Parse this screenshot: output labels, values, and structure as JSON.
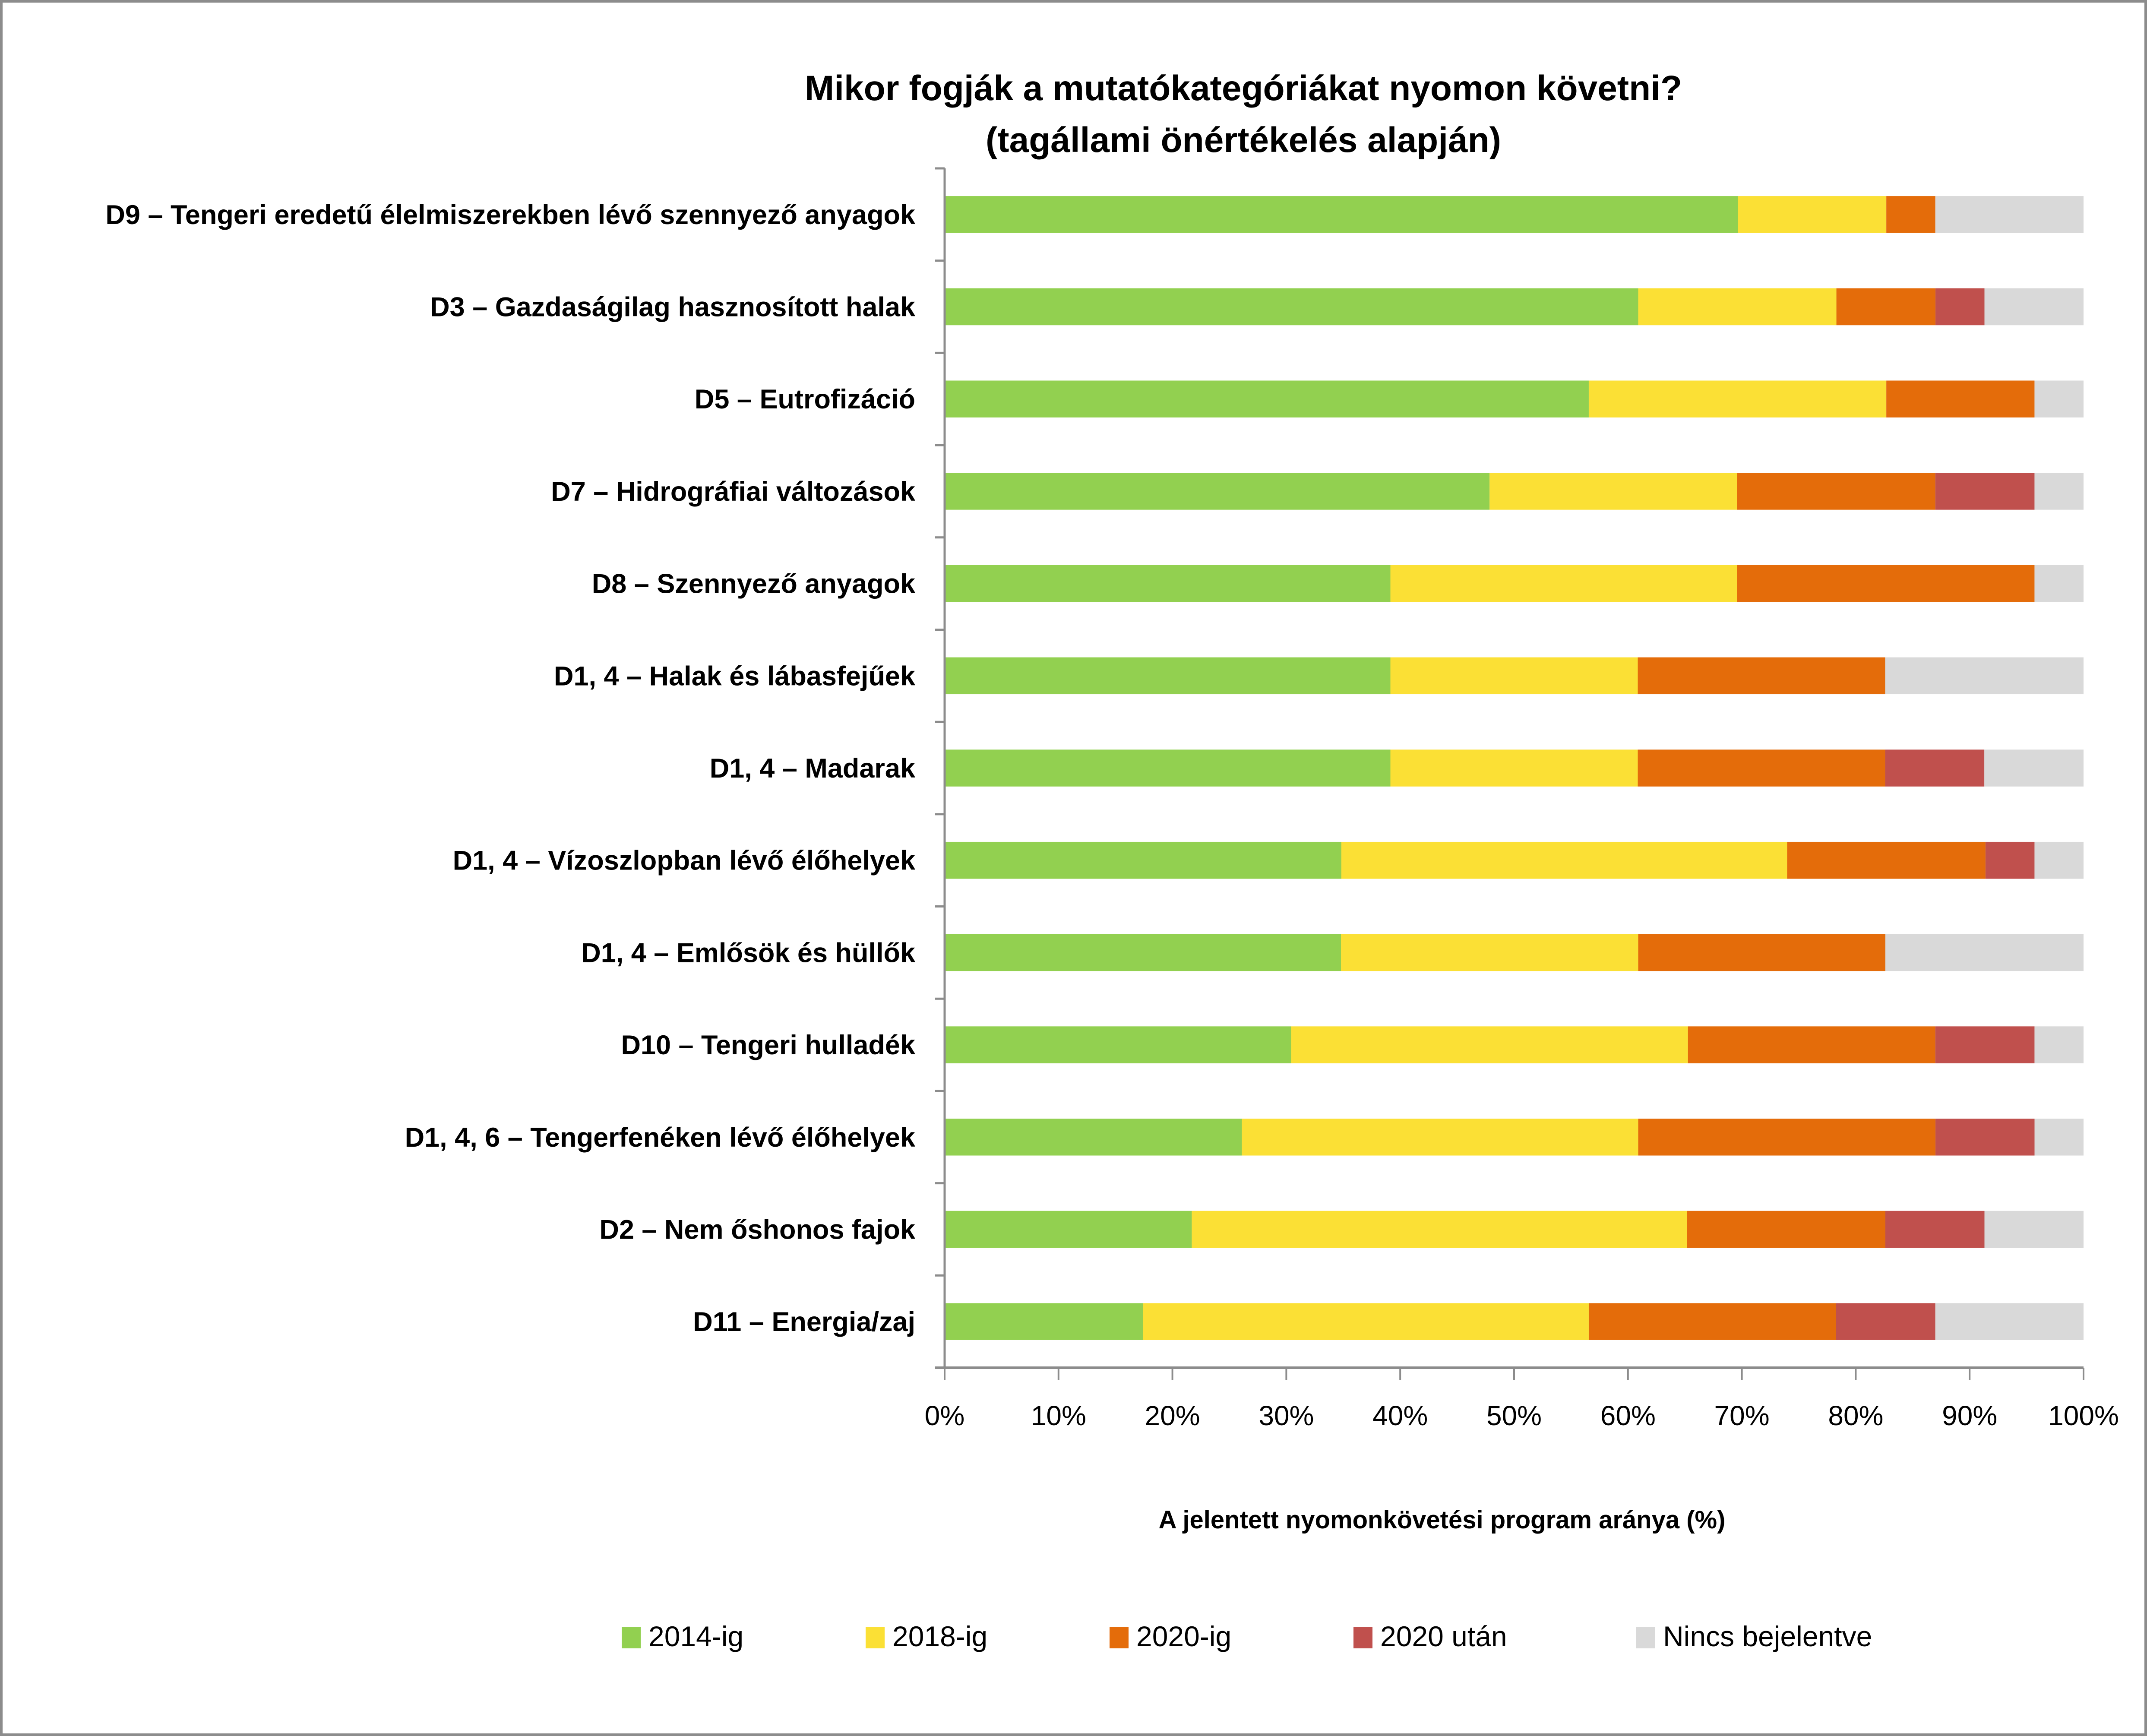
{
  "chart_data": {
    "type": "bar",
    "orientation": "horizontal",
    "stacked": "percent",
    "title": "Mikor fogják a mutatókategóriákat nyomon követni?",
    "subtitle": "(tagállami önértékelés alapján)",
    "xlabel": "A jelentett nyomonkövetési program aránya (%)",
    "ylabel": "",
    "xlim": [
      0,
      100
    ],
    "x_ticks": [
      "0%",
      "10%",
      "20%",
      "30%",
      "40%",
      "50%",
      "60%",
      "70%",
      "80%",
      "90%",
      "100%"
    ],
    "grid": false,
    "legend_position": "bottom",
    "categories": [
      "D9 – Tengeri eredetű élelmiszerekben lévő szennyező anyagok",
      "D3 – Gazdaságilag hasznosított halak",
      "D5 – Eutrofizáció",
      "D7 – Hidrográfiai változások",
      "D8 – Szennyező anyagok",
      "D1, 4 – Halak és lábasfejűek",
      "D1, 4 – Madarak",
      "D1, 4 – Vízoszlopban lévő élőhelyek",
      "D1, 4 – Emlősök és hüllők",
      "D10 – Tengeri hulladék",
      "D1, 4, 6 – Tengerfenéken lévő élőhelyek",
      "D2 – Nem őshonos fajok",
      "D11 – Energia/zaj"
    ],
    "series": [
      {
        "name": "2014-ig",
        "color": "#92d050",
        "values": [
          69.6,
          60.9,
          56.5,
          47.8,
          39.1,
          39.1,
          39.1,
          34.8,
          34.8,
          30.4,
          26.1,
          21.7,
          17.4
        ]
      },
      {
        "name": "2018-ig",
        "color": "#fbe035",
        "values": [
          13.0,
          17.4,
          26.1,
          21.7,
          30.4,
          21.7,
          21.7,
          39.1,
          26.1,
          34.8,
          34.8,
          43.5,
          39.1
        ]
      },
      {
        "name": "2020-ig",
        "color": "#e46c0a",
        "values": [
          4.3,
          8.7,
          13.0,
          17.4,
          26.1,
          21.7,
          21.7,
          17.4,
          21.7,
          21.7,
          26.1,
          17.4,
          21.7
        ]
      },
      {
        "name": "2020 után",
        "color": "#c0504d",
        "values": [
          0,
          4.3,
          0,
          8.7,
          0,
          0,
          8.7,
          4.3,
          0,
          8.7,
          8.7,
          8.7,
          8.7
        ]
      },
      {
        "name": "Nincs bejelentve",
        "color": "#d9d9d9",
        "values": [
          13.0,
          8.7,
          4.3,
          4.3,
          4.3,
          17.4,
          8.7,
          4.3,
          17.4,
          4.3,
          4.3,
          8.7,
          13.0
        ]
      }
    ]
  }
}
